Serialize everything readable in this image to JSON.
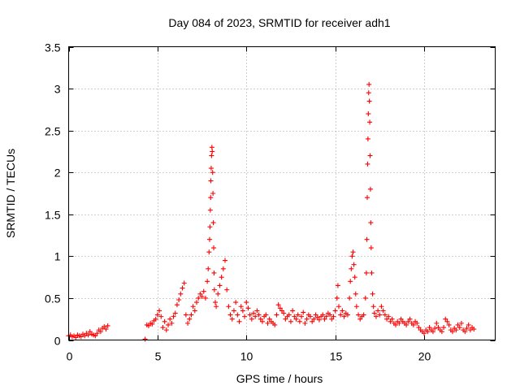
{
  "chart_data": {
    "type": "scatter",
    "title": "Day 084 of 2023, SRMTID for receiver adh1",
    "xlabel": "GPS time / hours",
    "ylabel": "SRMTID / TECUs",
    "xlim": [
      0,
      24
    ],
    "ylim": [
      0,
      3.5
    ],
    "xticks": [
      0,
      5,
      10,
      15,
      20
    ],
    "yticks": [
      0,
      0.5,
      1,
      1.5,
      2,
      2.5,
      3,
      3.5
    ],
    "grid": true,
    "marker": "plus",
    "series": [
      {
        "name": "adh1",
        "color": "#ff0000",
        "points": [
          [
            0.0,
            0.05
          ],
          [
            0.1,
            0.06
          ],
          [
            0.2,
            0.04
          ],
          [
            0.3,
            0.05
          ],
          [
            0.4,
            0.03
          ],
          [
            0.5,
            0.06
          ],
          [
            0.6,
            0.05
          ],
          [
            0.7,
            0.04
          ],
          [
            0.8,
            0.07
          ],
          [
            0.9,
            0.05
          ],
          [
            1.0,
            0.08
          ],
          [
            1.1,
            0.06
          ],
          [
            1.2,
            0.1
          ],
          [
            1.3,
            0.07
          ],
          [
            1.4,
            0.06
          ],
          [
            1.5,
            0.05
          ],
          [
            1.6,
            0.08
          ],
          [
            1.7,
            0.12
          ],
          [
            1.8,
            0.1
          ],
          [
            1.9,
            0.14
          ],
          [
            2.0,
            0.16
          ],
          [
            2.1,
            0.13
          ],
          [
            2.2,
            0.17
          ],
          [
            4.3,
            0.01
          ],
          [
            4.4,
            0.18
          ],
          [
            4.5,
            0.17
          ],
          [
            4.6,
            0.2
          ],
          [
            4.7,
            0.19
          ],
          [
            4.8,
            0.23
          ],
          [
            4.9,
            0.25
          ],
          [
            5.0,
            0.3
          ],
          [
            5.1,
            0.35
          ],
          [
            5.2,
            0.28
          ],
          [
            5.3,
            0.15
          ],
          [
            5.4,
            0.22
          ],
          [
            5.5,
            0.12
          ],
          [
            5.6,
            0.18
          ],
          [
            5.7,
            0.25
          ],
          [
            5.8,
            0.2
          ],
          [
            5.9,
            0.28
          ],
          [
            6.0,
            0.32
          ],
          [
            6.1,
            0.42
          ],
          [
            6.2,
            0.48
          ],
          [
            6.3,
            0.55
          ],
          [
            6.4,
            0.62
          ],
          [
            6.5,
            0.68
          ],
          [
            6.6,
            0.3
          ],
          [
            6.7,
            0.2
          ],
          [
            6.8,
            0.25
          ],
          [
            6.9,
            0.3
          ],
          [
            7.0,
            0.4
          ],
          [
            7.1,
            0.35
          ],
          [
            7.2,
            0.45
          ],
          [
            7.3,
            0.5
          ],
          [
            7.4,
            0.55
          ],
          [
            7.5,
            0.52
          ],
          [
            7.6,
            0.58
          ],
          [
            7.7,
            0.5
          ],
          [
            7.8,
            0.7
          ],
          [
            7.85,
            0.85
          ],
          [
            7.9,
            1.05
          ],
          [
            7.93,
            1.2
          ],
          [
            7.95,
            1.35
          ],
          [
            7.97,
            1.55
          ],
          [
            7.99,
            1.7
          ],
          [
            8.0,
            1.9
          ],
          [
            8.02,
            2.05
          ],
          [
            8.04,
            2.2
          ],
          [
            8.06,
            2.3
          ],
          [
            8.08,
            2.25
          ],
          [
            8.1,
            2.0
          ],
          [
            8.12,
            1.75
          ],
          [
            8.14,
            1.4
          ],
          [
            8.16,
            1.1
          ],
          [
            8.18,
            0.8
          ],
          [
            8.2,
            0.6
          ],
          [
            8.25,
            0.45
          ],
          [
            8.3,
            0.4
          ],
          [
            8.4,
            0.55
          ],
          [
            8.5,
            0.65
          ],
          [
            8.6,
            0.75
          ],
          [
            8.7,
            0.85
          ],
          [
            8.8,
            0.95
          ],
          [
            8.9,
            0.6
          ],
          [
            9.0,
            0.4
          ],
          [
            9.1,
            0.3
          ],
          [
            9.2,
            0.25
          ],
          [
            9.3,
            0.35
          ],
          [
            9.4,
            0.45
          ],
          [
            9.5,
            0.3
          ],
          [
            9.6,
            0.22
          ],
          [
            9.7,
            0.4
          ],
          [
            9.8,
            0.35
          ],
          [
            9.9,
            0.28
          ],
          [
            10.0,
            0.45
          ],
          [
            10.1,
            0.38
          ],
          [
            10.2,
            0.3
          ],
          [
            10.3,
            0.25
          ],
          [
            10.4,
            0.32
          ],
          [
            10.5,
            0.28
          ],
          [
            10.6,
            0.35
          ],
          [
            10.7,
            0.3
          ],
          [
            10.8,
            0.25
          ],
          [
            10.9,
            0.22
          ],
          [
            11.0,
            0.28
          ],
          [
            11.1,
            0.3
          ],
          [
            11.2,
            0.2
          ],
          [
            11.3,
            0.25
          ],
          [
            11.4,
            0.22
          ],
          [
            11.5,
            0.2
          ],
          [
            11.6,
            0.18
          ],
          [
            11.7,
            0.3
          ],
          [
            11.8,
            0.42
          ],
          [
            11.9,
            0.38
          ],
          [
            12.0,
            0.35
          ],
          [
            12.1,
            0.32
          ],
          [
            12.2,
            0.25
          ],
          [
            12.3,
            0.28
          ],
          [
            12.4,
            0.3
          ],
          [
            12.5,
            0.22
          ],
          [
            12.6,
            0.35
          ],
          [
            12.7,
            0.28
          ],
          [
            12.8,
            0.25
          ],
          [
            12.9,
            0.3
          ],
          [
            13.0,
            0.22
          ],
          [
            13.1,
            0.28
          ],
          [
            13.2,
            0.33
          ],
          [
            13.3,
            0.2
          ],
          [
            13.4,
            0.25
          ],
          [
            13.5,
            0.3
          ],
          [
            13.6,
            0.28
          ],
          [
            13.7,
            0.22
          ],
          [
            13.8,
            0.25
          ],
          [
            13.9,
            0.3
          ],
          [
            14.0,
            0.27
          ],
          [
            14.1,
            0.24
          ],
          [
            14.2,
            0.28
          ],
          [
            14.3,
            0.3
          ],
          [
            14.4,
            0.25
          ],
          [
            14.5,
            0.28
          ],
          [
            14.6,
            0.32
          ],
          [
            14.7,
            0.3
          ],
          [
            14.8,
            0.25
          ],
          [
            14.9,
            0.28
          ],
          [
            15.0,
            0.35
          ],
          [
            15.1,
            0.5
          ],
          [
            15.15,
            0.65
          ],
          [
            15.2,
            0.4
          ],
          [
            15.3,
            0.3
          ],
          [
            15.4,
            0.35
          ],
          [
            15.5,
            0.28
          ],
          [
            15.6,
            0.32
          ],
          [
            15.7,
            0.3
          ],
          [
            15.8,
            0.5
          ],
          [
            15.85,
            0.7
          ],
          [
            15.9,
            0.85
          ],
          [
            15.95,
            1.0
          ],
          [
            16.0,
            1.05
          ],
          [
            16.05,
            0.9
          ],
          [
            16.1,
            0.75
          ],
          [
            16.15,
            0.55
          ],
          [
            16.2,
            0.4
          ],
          [
            16.3,
            0.3
          ],
          [
            16.4,
            0.25
          ],
          [
            16.5,
            0.28
          ],
          [
            16.6,
            0.3
          ],
          [
            16.7,
            0.5
          ],
          [
            16.75,
            0.8
          ],
          [
            16.78,
            1.2
          ],
          [
            16.8,
            1.7
          ],
          [
            16.82,
            2.1
          ],
          [
            16.84,
            2.4
          ],
          [
            16.86,
            2.7
          ],
          [
            16.88,
            2.95
          ],
          [
            16.9,
            3.05
          ],
          [
            16.92,
            2.85
          ],
          [
            16.94,
            2.6
          ],
          [
            16.96,
            2.2
          ],
          [
            16.98,
            1.8
          ],
          [
            17.0,
            1.4
          ],
          [
            17.02,
            1.1
          ],
          [
            17.05,
            0.8
          ],
          [
            17.1,
            0.55
          ],
          [
            17.15,
            0.4
          ],
          [
            17.2,
            0.32
          ],
          [
            17.3,
            0.28
          ],
          [
            17.4,
            0.35
          ],
          [
            17.5,
            0.3
          ],
          [
            17.6,
            0.4
          ],
          [
            17.7,
            0.35
          ],
          [
            17.8,
            0.3
          ],
          [
            17.9,
            0.25
          ],
          [
            18.0,
            0.28
          ],
          [
            18.1,
            0.22
          ],
          [
            18.2,
            0.25
          ],
          [
            18.3,
            0.2
          ],
          [
            18.4,
            0.18
          ],
          [
            18.5,
            0.22
          ],
          [
            18.6,
            0.2
          ],
          [
            18.7,
            0.25
          ],
          [
            18.8,
            0.22
          ],
          [
            18.9,
            0.2
          ],
          [
            19.0,
            0.18
          ],
          [
            19.1,
            0.22
          ],
          [
            19.2,
            0.25
          ],
          [
            19.3,
            0.2
          ],
          [
            19.4,
            0.18
          ],
          [
            19.5,
            0.22
          ],
          [
            19.6,
            0.2
          ],
          [
            19.7,
            0.15
          ],
          [
            19.8,
            0.12
          ],
          [
            19.9,
            0.1
          ],
          [
            20.0,
            0.08
          ],
          [
            20.1,
            0.12
          ],
          [
            20.2,
            0.1
          ],
          [
            20.3,
            0.15
          ],
          [
            20.4,
            0.12
          ],
          [
            20.5,
            0.1
          ],
          [
            20.6,
            0.14
          ],
          [
            20.7,
            0.2
          ],
          [
            20.8,
            0.15
          ],
          [
            20.9,
            0.12
          ],
          [
            21.0,
            0.1
          ],
          [
            21.1,
            0.15
          ],
          [
            21.2,
            0.25
          ],
          [
            21.3,
            0.22
          ],
          [
            21.4,
            0.18
          ],
          [
            21.5,
            0.12
          ],
          [
            21.6,
            0.1
          ],
          [
            21.7,
            0.14
          ],
          [
            21.8,
            0.12
          ],
          [
            21.9,
            0.18
          ],
          [
            22.0,
            0.15
          ],
          [
            22.1,
            0.2
          ],
          [
            22.2,
            0.12
          ],
          [
            22.3,
            0.1
          ],
          [
            22.4,
            0.14
          ],
          [
            22.5,
            0.18
          ],
          [
            22.6,
            0.12
          ],
          [
            22.7,
            0.15
          ],
          [
            22.8,
            0.13
          ]
        ]
      }
    ]
  }
}
